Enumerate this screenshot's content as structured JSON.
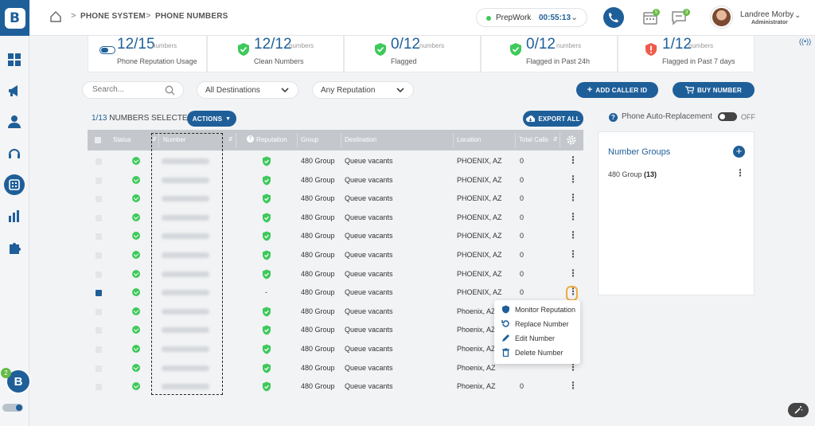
{
  "breadcrumb": {
    "level1": "PHONE SYSTEM",
    "level2": "PHONE NUMBERS"
  },
  "status": {
    "label": "PrepWork",
    "timer": "00:55:13"
  },
  "header_badges": {
    "calendar": "5",
    "chat": "3"
  },
  "user": {
    "name": "Landree Morby",
    "role": "Administrator"
  },
  "stats": [
    {
      "value": "12",
      "total": "/15",
      "unit": "numbers",
      "label": "Phone Reputation Usage",
      "icon": "reputation-usage-icon"
    },
    {
      "value": "12",
      "total": "/12",
      "unit": "numbers",
      "label": "Clean Numbers",
      "icon": "shield-check-icon"
    },
    {
      "value": "0",
      "total": "/12",
      "unit": "numbers",
      "label": "Flagged",
      "icon": "shield-check-icon"
    },
    {
      "value": "0",
      "total": "/12",
      "unit": "numbers",
      "label": "Flagged in Past 24h",
      "icon": "shield-check-icon"
    },
    {
      "value": "1",
      "total": "/12",
      "unit": "numbers",
      "label": "Flagged in Past 7 days",
      "icon": "shield-alert-icon"
    }
  ],
  "filters": {
    "search_placeholder": "Search...",
    "destinations": "All Destinations",
    "reputation": "Any Reputation",
    "add_caller_id": "ADD CALLER ID",
    "buy_number": "BUY NUMBER"
  },
  "selection": {
    "count": "1/13",
    "text": "NUMBERS SELECTED",
    "actions": "ACTIONS",
    "export": "EXPORT ALL"
  },
  "table": {
    "headers": {
      "status": "Status",
      "number": "Number",
      "reputation": "Reputation",
      "group": "Group",
      "destination": "Destination",
      "location": "Location",
      "total_calls": "Total Calls"
    },
    "rows": [
      {
        "checked": false,
        "rep": "shield",
        "group": "480 Group",
        "destination": "Queue vacants",
        "location": "PHOENIX, AZ",
        "calls": "0"
      },
      {
        "checked": false,
        "rep": "shield",
        "group": "480 Group",
        "destination": "Queue vacants",
        "location": "PHOENIX, AZ",
        "calls": "0"
      },
      {
        "checked": false,
        "rep": "shield",
        "group": "480 Group",
        "destination": "Queue vacants",
        "location": "PHOENIX, AZ",
        "calls": "0"
      },
      {
        "checked": false,
        "rep": "shield",
        "group": "480 Group",
        "destination": "Queue vacants",
        "location": "PHOENIX, AZ",
        "calls": "0"
      },
      {
        "checked": false,
        "rep": "shield",
        "group": "480 Group",
        "destination": "Queue vacants",
        "location": "PHOENIX, AZ",
        "calls": "0"
      },
      {
        "checked": false,
        "rep": "shield",
        "group": "480 Group",
        "destination": "Queue vacants",
        "location": "PHOENIX, AZ",
        "calls": "0"
      },
      {
        "checked": false,
        "rep": "shield",
        "group": "480 Group",
        "destination": "Queue vacants",
        "location": "PHOENIX, AZ",
        "calls": "0"
      },
      {
        "checked": true,
        "rep": "-",
        "group": "480 Group",
        "destination": "Queue vacants",
        "location": "PHOENIX, AZ",
        "calls": "0"
      },
      {
        "checked": false,
        "rep": "shield",
        "group": "480 Group",
        "destination": "Queue vacants",
        "location": "Phoenix, AZ",
        "calls": ""
      },
      {
        "checked": false,
        "rep": "shield",
        "group": "480 Group",
        "destination": "Queue vacants",
        "location": "Phoenix, AZ",
        "calls": ""
      },
      {
        "checked": false,
        "rep": "shield",
        "group": "480 Group",
        "destination": "Queue vacants",
        "location": "Phoenix, AZ",
        "calls": ""
      },
      {
        "checked": false,
        "rep": "shield",
        "group": "480 Group",
        "destination": "Queue vacants",
        "location": "Phoenix, AZ",
        "calls": ""
      },
      {
        "checked": false,
        "rep": "shield",
        "group": "480 Group",
        "destination": "Queue vacants",
        "location": "Phoenix, AZ",
        "calls": "0"
      }
    ]
  },
  "context_menu": {
    "monitor": "Monitor Reputation",
    "replace": "Replace Number",
    "edit": "Edit Number",
    "delete": "Delete Number"
  },
  "auto_replacement": {
    "label": "Phone Auto-Replacement",
    "state": "OFF"
  },
  "number_groups": {
    "title": "Number Groups",
    "item_name": "480 Group",
    "item_count": "(13)"
  },
  "sidebar_badge": "2",
  "colors": {
    "brand": "#1f5f99",
    "success": "#3ec95b",
    "warning": "#f05a4a",
    "highlight": "#f0a93c"
  }
}
